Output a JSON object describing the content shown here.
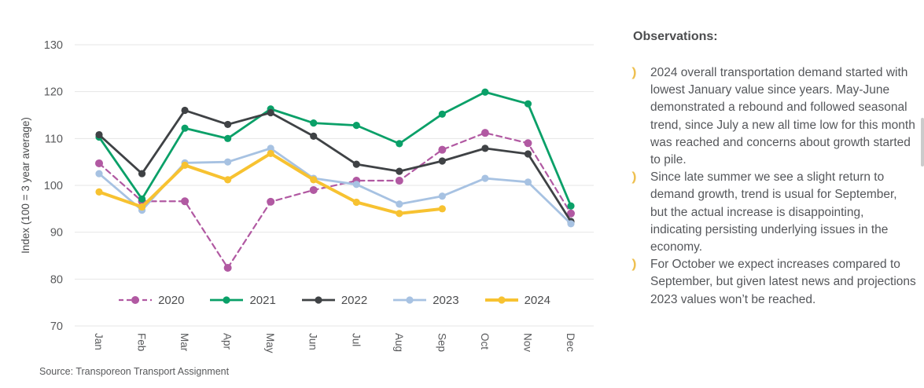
{
  "chart_data": {
    "type": "line",
    "title": "",
    "xlabel": "",
    "ylabel": "Index (100 = 3 year average)",
    "source": "Source: Transporeon Transport Assignment",
    "categories": [
      "Jan",
      "Feb",
      "Mar",
      "Apr",
      "May",
      "Jun",
      "Jul",
      "Aug",
      "Sep",
      "Oct",
      "Nov",
      "Dec"
    ],
    "ylim": [
      70,
      130
    ],
    "yticks": [
      130,
      120,
      110,
      100,
      90,
      80,
      70
    ],
    "grid": "horizontal",
    "legend_position": "bottom",
    "series": [
      {
        "name": "2020",
        "color": "#b159a2",
        "dashed": true,
        "width": 2.2,
        "marker_r": 5,
        "values": [
          104.7,
          96.6,
          96.6,
          82.4,
          96.5,
          99.0,
          101.0,
          101.0,
          107.6,
          111.2,
          109.0,
          94.0
        ]
      },
      {
        "name": "2021",
        "color": "#0aa068",
        "dashed": false,
        "width": 2.8,
        "marker_r": 4.6,
        "values": [
          110.3,
          97.1,
          112.2,
          110.0,
          116.3,
          113.3,
          112.8,
          108.9,
          115.2,
          119.9,
          117.4,
          95.6
        ]
      },
      {
        "name": "2022",
        "color": "#3f4245",
        "dashed": false,
        "width": 2.8,
        "marker_r": 4.6,
        "values": [
          110.8,
          102.5,
          116.0,
          113.0,
          115.5,
          110.5,
          104.5,
          103.0,
          105.2,
          107.9,
          106.7,
          92.3
        ]
      },
      {
        "name": "2023",
        "color": "#a7c2e2",
        "dashed": false,
        "width": 2.8,
        "marker_r": 4.6,
        "values": [
          102.5,
          94.7,
          104.8,
          105.0,
          107.9,
          101.5,
          100.2,
          96.0,
          97.7,
          101.5,
          100.7,
          91.8
        ]
      },
      {
        "name": "2024",
        "color": "#f7c231",
        "dashed": false,
        "width": 4,
        "marker_r": 4.6,
        "values": [
          98.6,
          95.4,
          104.3,
          101.2,
          106.8,
          101.2,
          96.4,
          94.0,
          95.0,
          null,
          null,
          null
        ]
      }
    ]
  },
  "observations": {
    "title": "Observations:",
    "bullet_glyph": ")",
    "items": [
      "2024 overall transportation demand started with lowest January value since years. May-June demonstrated a rebound and followed seasonal trend, since July a new all time low for this month was reached and concerns about growth started to pile.",
      "Since late summer we see a slight return to demand growth, trend is usual for September, but the actual increase is disappointing, indicating persisting underlying issues in the economy.",
      "For October we expect increases compared to September, but given latest news and projections 2023 values won’t be reached."
    ]
  }
}
